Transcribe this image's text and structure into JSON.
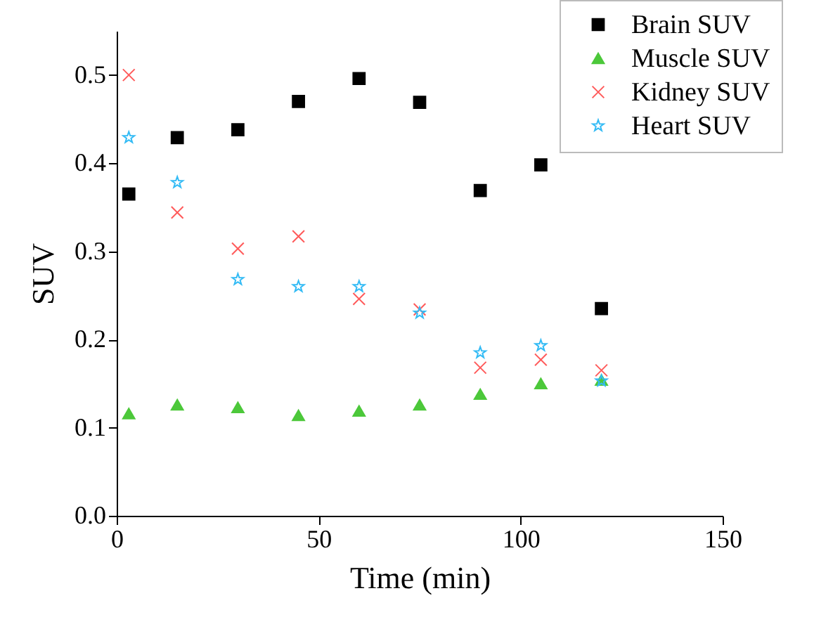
{
  "chart_data": {
    "type": "scatter",
    "xlabel": "Time (min)",
    "ylabel": "SUV",
    "x": [
      3,
      15,
      30,
      45,
      60,
      75,
      90,
      105,
      120
    ],
    "series": [
      {
        "name": "Brain SUV",
        "color": "#000000",
        "marker": "square",
        "values": [
          0.365,
          0.429,
          0.438,
          0.47,
          0.496,
          0.469,
          0.369,
          0.398,
          0.235
        ]
      },
      {
        "name": "Muscle SUV",
        "color": "#4cc83a",
        "marker": "triangle",
        "values": [
          0.116,
          0.126,
          0.123,
          0.114,
          0.119,
          0.126,
          0.138,
          0.15,
          0.154
        ]
      },
      {
        "name": "Kidney SUV",
        "color": "#ff5a5a",
        "marker": "cross",
        "values": [
          0.5,
          0.344,
          0.303,
          0.317,
          0.246,
          0.234,
          0.168,
          0.177,
          0.165
        ]
      },
      {
        "name": "Heart SUV",
        "color": "#33bbf5",
        "marker": "star",
        "values": [
          0.429,
          0.378,
          0.268,
          0.26,
          0.26,
          0.23,
          0.185,
          0.193,
          0.153
        ]
      }
    ],
    "xlim": [
      0,
      150
    ],
    "xticks": [
      0,
      50,
      100,
      150
    ],
    "ylim": [
      0,
      0.55
    ],
    "yticks": [
      {
        "value": 0,
        "label": "0.0"
      },
      0.1,
      0.2,
      0.3,
      0.4,
      0.5
    ],
    "grid": false,
    "legend": "top right"
  }
}
